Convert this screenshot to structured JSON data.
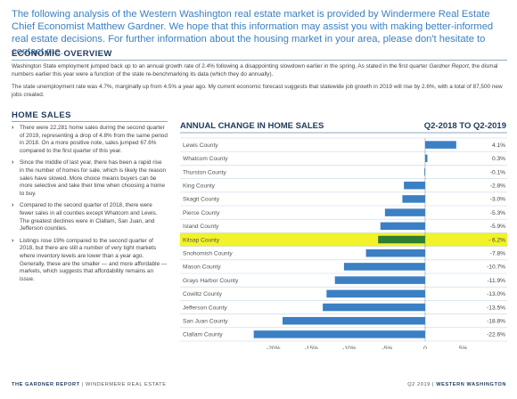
{
  "intro": "The following analysis of the Western Washington real estate market is provided by Windermere Real Estate Chief Economist Matthew Gardner. We hope that this information may assist you with making better-informed real estate decisions. For further information about the housing market in your area, please don't hesitate to contact me.",
  "economic_overview": {
    "heading": "ECONOMIC OVERVIEW",
    "para1_start": "Washington State employment jumped back up to an annual growth rate of 2.4% following a disappointing slowdown earlier in the spring. As stated in the first quarter ",
    "para1_em": "Gardner Report",
    "para1_end": ", the dismal numbers earlier this year were a function of the state re-benchmarking its data (which they do annually).",
    "para2": "The state unemployment rate was 4.7%, marginally up from 4.5% a year ago. My current economic forecast suggests that statewide job growth in 2019 will rise by 2.6%, with a total of 87,500 new jobs created."
  },
  "home_sales": {
    "heading": "HOME SALES",
    "bullets": [
      "There were 22,281 home sales during the second quarter of 2019, representing a drop of 4.8% from the same period in 2018. On a more positive note, sales jumped 67.6% compared to the first quarter of this year.",
      "Since the middle of last year, there has been a rapid rise in the number of homes for sale, which is likely the reason sales have slowed. More choice means buyers can be more selective and take their time when choosing a home to buy.",
      "Compared to the second quarter of 2018, there were fewer sales in all counties except Whatcom and Lewis. The greatest declines were in Clallam, San Juan, and Jefferson counties.",
      "Listings rose 19% compared to the second quarter of 2018, but there are still a number of very tight markets where inventory levels are lower than a year ago. Generally, these are the smaller — and more affordable — markets, which suggests that affordability remains an issue."
    ]
  },
  "chart_data": {
    "type": "bar",
    "orientation": "horizontal",
    "title": "ANNUAL CHANGE IN HOME SALES",
    "subtitle": "Q2-2018 TO Q2-2019",
    "categories": [
      "Lewis County",
      "Whatcom County",
      "Thurston County",
      "King County",
      "Skagit County",
      "Pierce County",
      "Island County",
      "Kitsap County",
      "Snohomish County",
      "Mason County",
      "Grays Harbor County",
      "Cowlitz County",
      "Jefferson County",
      "San Juan County",
      "Clallam County"
    ],
    "values": [
      4.1,
      0.3,
      -0.1,
      -2.8,
      -3.0,
      -5.3,
      -5.9,
      -6.2,
      -7.8,
      -10.7,
      -11.9,
      -13.0,
      -13.5,
      -18.8,
      -22.6
    ],
    "value_labels": [
      "4.1%",
      "0.3%",
      "-0.1%",
      "-2.8%",
      "-3.0%",
      "-5.3%",
      "-5.9%",
      "- 6.2%",
      "-7.8%",
      "-10.7%",
      "-11.9%",
      "-13.0%",
      "-13.5%",
      "-18.8%",
      "-22.6%"
    ],
    "highlight": "Kitsap County",
    "xlim": [
      -23.5,
      6
    ],
    "xticks": [
      -20,
      -15,
      -10,
      -5,
      0,
      5
    ],
    "xtick_labels": [
      "-20%",
      "-15%",
      "-10%",
      "-5%",
      "0",
      "5%"
    ],
    "colors": {
      "bar": "#3b7fc4",
      "highlight_bar": "#2f7d32",
      "highlight_band": "#f2f22a",
      "row_line": "#c9d6e3"
    }
  },
  "footer": {
    "left_bold": "THE GARDNER REPORT",
    "left_rest": " | WINDERMERE REAL ESTATE",
    "right_plain": "Q2 2019 | ",
    "right_bold": "WESTERN WASHINGTON"
  }
}
